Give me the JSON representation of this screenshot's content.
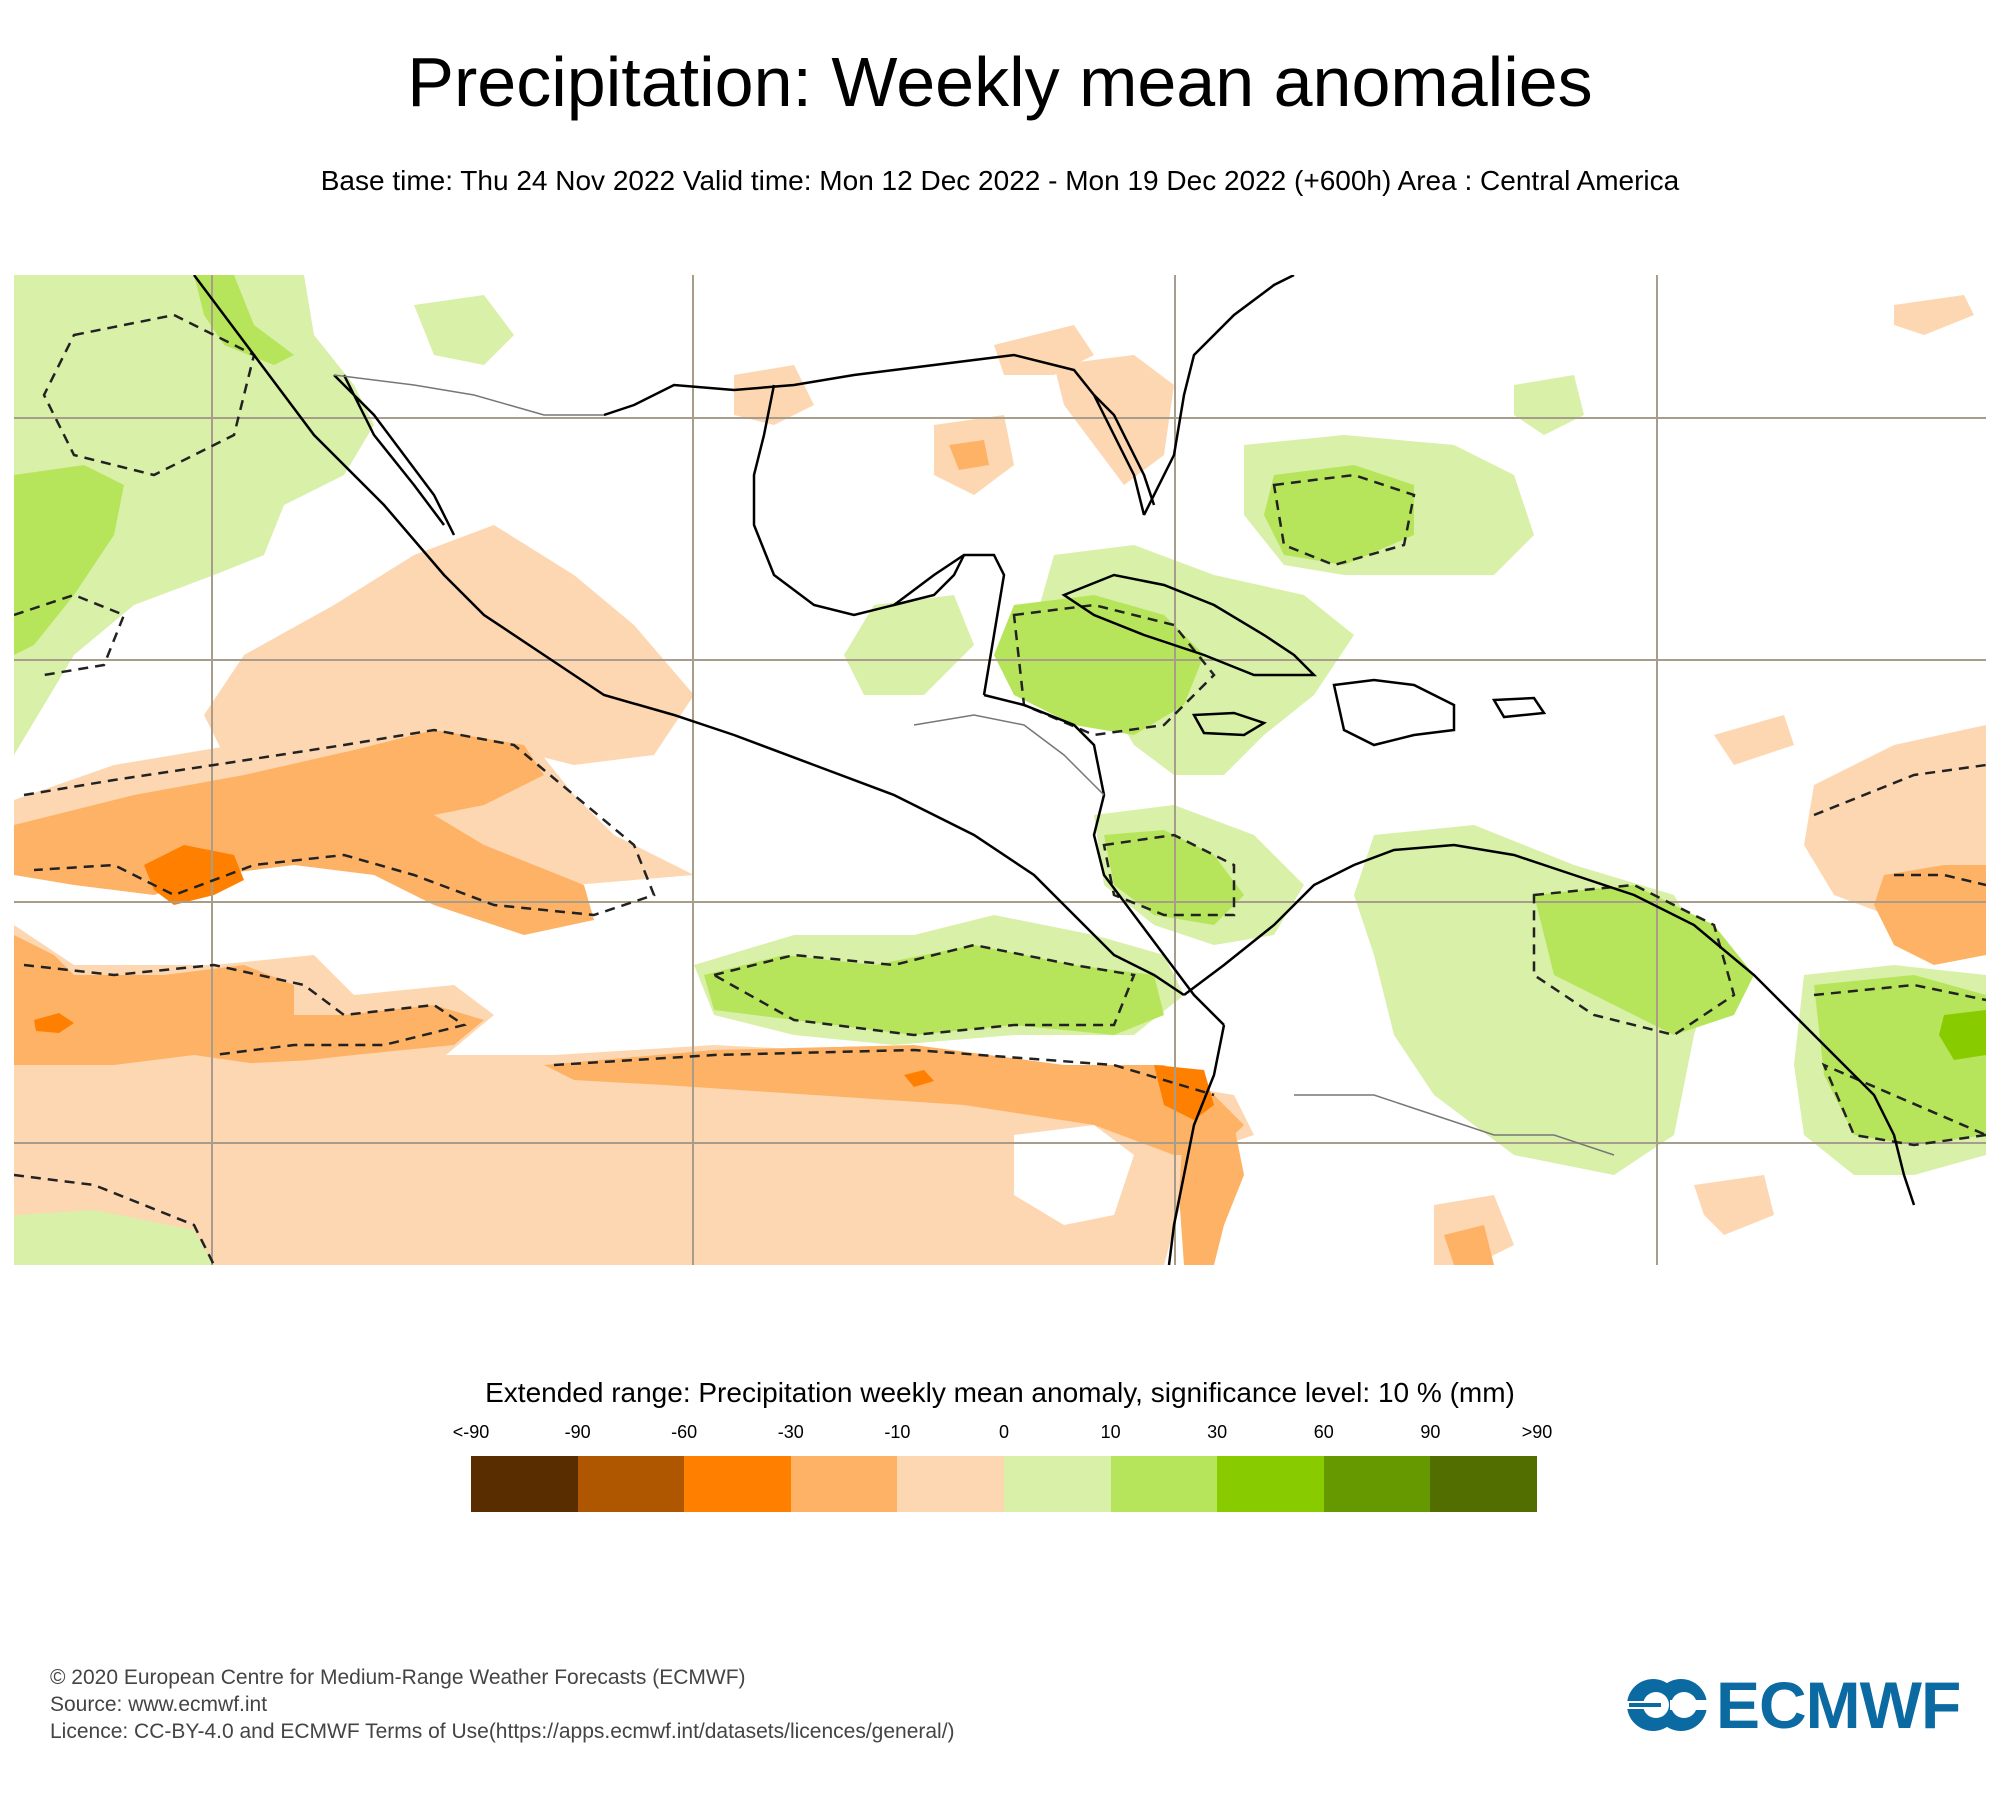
{
  "header": {
    "title": "Precipitation: Weekly mean anomalies",
    "subtitle": "Base time: Thu 24 Nov 2022 Valid time: Mon 12 Dec 2022 - Mon 19 Dec 2022 (+600h) Area : Central America"
  },
  "map": {
    "area": "Central America",
    "variable": "Precipitation weekly mean anomaly",
    "units": "mm",
    "significance_contour": "dashed line, 10 % significance level",
    "colors": {
      "coastline": "#000000",
      "border": "#777777",
      "grid": "#a89c8a"
    }
  },
  "legend": {
    "title": "Extended range: Precipitation weekly mean anomaly, significance level: 10 % (mm)",
    "labels": [
      "<-90",
      "-90",
      "-60",
      "-30",
      "-10",
      "0",
      "10",
      "30",
      "60",
      "90",
      ">90"
    ],
    "bins": [
      {
        "range": "<-90",
        "color": "#5a2d00"
      },
      {
        "range": "-90 to -60",
        "color": "#ae5600"
      },
      {
        "range": "-60 to -30",
        "color": "#ff8000"
      },
      {
        "range": "-30 to -10",
        "color": "#fdb266"
      },
      {
        "range": "-10 to 0",
        "color": "#fdd7b1"
      },
      {
        "range": "0 to 10",
        "color": "#d9f0a8"
      },
      {
        "range": "10 to 30",
        "color": "#b6e55c"
      },
      {
        "range": "30 to 60",
        "color": "#88cc00"
      },
      {
        "range": "60 to 90",
        "color": "#669900"
      },
      {
        "range": ">90",
        "color": "#526e00"
      }
    ]
  },
  "footer": {
    "copyright": "© 2020 European Centre for Medium-Range Weather Forecasts (ECMWF)",
    "source": "Source: www.ecmwf.int",
    "licence": "Licence: CC-BY-4.0 and ECMWF Terms of Use(https://apps.ecmwf.int/datasets/licences/general/)"
  },
  "logo": {
    "text": "ECMWF",
    "color": "#0a6aa1"
  }
}
